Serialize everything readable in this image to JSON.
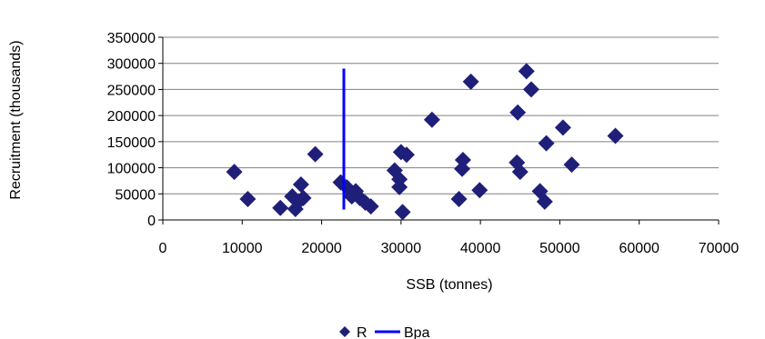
{
  "chart_data": {
    "type": "scatter",
    "xlabel": "SSB (tonnes)",
    "ylabel": "Recruitment (thousands)",
    "xlim": [
      0,
      70000
    ],
    "ylim": [
      0,
      350000
    ],
    "x_ticks": [
      0,
      10000,
      20000,
      30000,
      40000,
      50000,
      60000,
      70000
    ],
    "y_ticks": [
      0,
      50000,
      100000,
      150000,
      200000,
      250000,
      300000,
      350000
    ],
    "grid": "horizontal",
    "legend_position": "bottom",
    "colors": {
      "R": "#1f1f7a",
      "Bpa": "#0000ff",
      "grid": "#808080"
    },
    "series": [
      {
        "name": "R",
        "marker": "diamond",
        "points": [
          [
            9000,
            92000
          ],
          [
            10700,
            40000
          ],
          [
            14800,
            23000
          ],
          [
            16300,
            45000
          ],
          [
            16700,
            21000
          ],
          [
            17100,
            35000
          ],
          [
            17400,
            68000
          ],
          [
            17700,
            42000
          ],
          [
            19200,
            126000
          ],
          [
            22400,
            72000
          ],
          [
            23200,
            62000
          ],
          [
            23800,
            45000
          ],
          [
            24300,
            55000
          ],
          [
            24800,
            42000
          ],
          [
            25500,
            33000
          ],
          [
            26200,
            26000
          ],
          [
            29200,
            95000
          ],
          [
            29800,
            78000
          ],
          [
            29800,
            63000
          ],
          [
            30000,
            130000
          ],
          [
            30200,
            15000
          ],
          [
            30700,
            125000
          ],
          [
            33900,
            192000
          ],
          [
            37300,
            40000
          ],
          [
            37700,
            98000
          ],
          [
            37800,
            115000
          ],
          [
            38800,
            265000
          ],
          [
            39900,
            57000
          ],
          [
            44600,
            110000
          ],
          [
            44700,
            206000
          ],
          [
            45000,
            92000
          ],
          [
            45800,
            285000
          ],
          [
            46400,
            250000
          ],
          [
            47500,
            55000
          ],
          [
            48100,
            35000
          ],
          [
            48300,
            147000
          ],
          [
            50400,
            177000
          ],
          [
            51500,
            106000
          ],
          [
            57000,
            161000
          ]
        ]
      },
      {
        "name": "Bpa",
        "type": "line",
        "x": [
          22800,
          22800
        ],
        "y": [
          20000,
          290000
        ]
      }
    ]
  }
}
